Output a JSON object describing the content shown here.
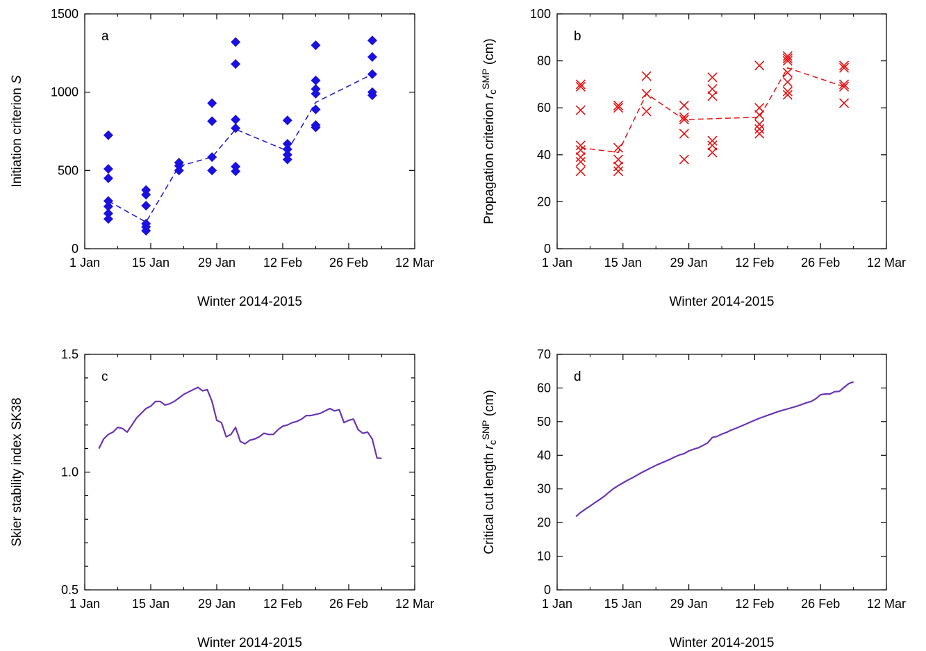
{
  "chart_data": [
    {
      "panel": "a",
      "type": "scatter",
      "ylabel": "Initiation criterion S",
      "ylabel_parts": [
        {
          "t": "Initiation criterion "
        },
        {
          "t": "S",
          "i": true
        }
      ],
      "xlabel": "Winter 2014-2015",
      "x_ticks": [
        "1 Jan",
        "15 Jan",
        "29 Jan",
        "12 Feb",
        "26 Feb",
        "12 Mar"
      ],
      "ylim": [
        0,
        1500
      ],
      "y_ticks": [
        0,
        500,
        1000,
        1500
      ],
      "y_ticks_labeled": [
        0,
        500,
        1000,
        1500
      ],
      "y_tick_fmt": "int",
      "color": "#1a10e0",
      "points": [
        {
          "x": "2015-01-06",
          "y": 725
        },
        {
          "x": "2015-01-06",
          "y": 510
        },
        {
          "x": "2015-01-06",
          "y": 450
        },
        {
          "x": "2015-01-06",
          "y": 305
        },
        {
          "x": "2015-01-06",
          "y": 270
        },
        {
          "x": "2015-01-06",
          "y": 225
        },
        {
          "x": "2015-01-06",
          "y": 190
        },
        {
          "x": "2015-01-14",
          "y": 375
        },
        {
          "x": "2015-01-14",
          "y": 345
        },
        {
          "x": "2015-01-14",
          "y": 275
        },
        {
          "x": "2015-01-14",
          "y": 160
        },
        {
          "x": "2015-01-14",
          "y": 140
        },
        {
          "x": "2015-01-14",
          "y": 115
        },
        {
          "x": "2015-01-21",
          "y": 550
        },
        {
          "x": "2015-01-21",
          "y": 530
        },
        {
          "x": "2015-01-21",
          "y": 500
        },
        {
          "x": "2015-01-28",
          "y": 930
        },
        {
          "x": "2015-01-28",
          "y": 815
        },
        {
          "x": "2015-01-28",
          "y": 585
        },
        {
          "x": "2015-01-28",
          "y": 500
        },
        {
          "x": "2015-02-02",
          "y": 1320
        },
        {
          "x": "2015-02-02",
          "y": 1180
        },
        {
          "x": "2015-02-02",
          "y": 825
        },
        {
          "x": "2015-02-02",
          "y": 770
        },
        {
          "x": "2015-02-02",
          "y": 525
        },
        {
          "x": "2015-02-02",
          "y": 495
        },
        {
          "x": "2015-02-13",
          "y": 820
        },
        {
          "x": "2015-02-13",
          "y": 670
        },
        {
          "x": "2015-02-13",
          "y": 635
        },
        {
          "x": "2015-02-13",
          "y": 600
        },
        {
          "x": "2015-02-13",
          "y": 570
        },
        {
          "x": "2015-02-19",
          "y": 1300
        },
        {
          "x": "2015-02-19",
          "y": 1075
        },
        {
          "x": "2015-02-19",
          "y": 1020
        },
        {
          "x": "2015-02-19",
          "y": 990
        },
        {
          "x": "2015-02-19",
          "y": 890
        },
        {
          "x": "2015-02-19",
          "y": 790
        },
        {
          "x": "2015-02-19",
          "y": 775
        },
        {
          "x": "2015-03-03",
          "y": 1330
        },
        {
          "x": "2015-03-03",
          "y": 1225
        },
        {
          "x": "2015-03-03",
          "y": 1115
        },
        {
          "x": "2015-03-03",
          "y": 1000
        },
        {
          "x": "2015-03-03",
          "y": 980
        }
      ],
      "mean_line": [
        {
          "x": "2015-01-06",
          "y": 305
        },
        {
          "x": "2015-01-14",
          "y": 170
        },
        {
          "x": "2015-01-21",
          "y": 527
        },
        {
          "x": "2015-01-28",
          "y": 585
        },
        {
          "x": "2015-02-02",
          "y": 763
        },
        {
          "x": "2015-02-13",
          "y": 625
        },
        {
          "x": "2015-02-19",
          "y": 935
        },
        {
          "x": "2015-03-03",
          "y": 1115
        }
      ]
    },
    {
      "panel": "b",
      "type": "scatter",
      "ylabel": "Propagation criterion rcSMP (cm)",
      "ylabel_parts": [
        {
          "t": "Propagation criterion "
        },
        {
          "t": "r",
          "i": true
        },
        {
          "t": "c",
          "sub": true
        },
        {
          "t": "SMP",
          "sup": true
        },
        {
          "t": " (cm)"
        }
      ],
      "xlabel": "Winter 2014-2015",
      "x_ticks": [
        "1 Jan",
        "15 Jan",
        "29 Jan",
        "12 Feb",
        "26 Feb",
        "12 Mar"
      ],
      "ylim": [
        0,
        100
      ],
      "y_ticks": [
        0,
        20,
        40,
        60,
        80,
        100
      ],
      "y_ticks_labeled": [
        0,
        20,
        40,
        60,
        80,
        100
      ],
      "y_tick_fmt": "int",
      "color": "#e8100f",
      "points": [
        {
          "x": "2015-01-06",
          "y": 70
        },
        {
          "x": "2015-01-06",
          "y": 69
        },
        {
          "x": "2015-01-06",
          "y": 59
        },
        {
          "x": "2015-01-06",
          "y": 44
        },
        {
          "x": "2015-01-06",
          "y": 42
        },
        {
          "x": "2015-01-06",
          "y": 39
        },
        {
          "x": "2015-01-06",
          "y": 37
        },
        {
          "x": "2015-01-06",
          "y": 33
        },
        {
          "x": "2015-01-14",
          "y": 61
        },
        {
          "x": "2015-01-14",
          "y": 60
        },
        {
          "x": "2015-01-14",
          "y": 43
        },
        {
          "x": "2015-01-14",
          "y": 38
        },
        {
          "x": "2015-01-14",
          "y": 35
        },
        {
          "x": "2015-01-14",
          "y": 33
        },
        {
          "x": "2015-01-20",
          "y": 73.5
        },
        {
          "x": "2015-01-20",
          "y": 66
        },
        {
          "x": "2015-01-20",
          "y": 58.5
        },
        {
          "x": "2015-01-28",
          "y": 61
        },
        {
          "x": "2015-01-28",
          "y": 56
        },
        {
          "x": "2015-01-28",
          "y": 55
        },
        {
          "x": "2015-01-28",
          "y": 49
        },
        {
          "x": "2015-01-28",
          "y": 38
        },
        {
          "x": "2015-02-03",
          "y": 73
        },
        {
          "x": "2015-02-03",
          "y": 68
        },
        {
          "x": "2015-02-03",
          "y": 65
        },
        {
          "x": "2015-02-03",
          "y": 46
        },
        {
          "x": "2015-02-03",
          "y": 44
        },
        {
          "x": "2015-02-03",
          "y": 41
        },
        {
          "x": "2015-02-13",
          "y": 78
        },
        {
          "x": "2015-02-13",
          "y": 60
        },
        {
          "x": "2015-02-13",
          "y": 57
        },
        {
          "x": "2015-02-13",
          "y": 53
        },
        {
          "x": "2015-02-13",
          "y": 51
        },
        {
          "x": "2015-02-13",
          "y": 49
        },
        {
          "x": "2015-02-19",
          "y": 82
        },
        {
          "x": "2015-02-19",
          "y": 81
        },
        {
          "x": "2015-02-19",
          "y": 80
        },
        {
          "x": "2015-02-19",
          "y": 75
        },
        {
          "x": "2015-02-19",
          "y": 71
        },
        {
          "x": "2015-02-19",
          "y": 67
        },
        {
          "x": "2015-02-19",
          "y": 65.5
        },
        {
          "x": "2015-03-03",
          "y": 78
        },
        {
          "x": "2015-03-03",
          "y": 77
        },
        {
          "x": "2015-03-03",
          "y": 70
        },
        {
          "x": "2015-03-03",
          "y": 69
        },
        {
          "x": "2015-03-03",
          "y": 62
        }
      ],
      "mean_line": [
        {
          "x": "2015-01-06",
          "y": 43
        },
        {
          "x": "2015-01-14",
          "y": 41
        },
        {
          "x": "2015-01-20",
          "y": 66
        },
        {
          "x": "2015-01-28",
          "y": 55
        },
        {
          "x": "2015-02-13",
          "y": 56
        },
        {
          "x": "2015-02-19",
          "y": 77
        },
        {
          "x": "2015-03-03",
          "y": 69
        }
      ]
    },
    {
      "panel": "c",
      "type": "line",
      "ylabel": "Skier stability index SK38",
      "ylabel_parts": [
        {
          "t": "Skier stability index SK38"
        }
      ],
      "xlabel": "Winter 2014-2015",
      "x_ticks": [
        "1 Jan",
        "15 Jan",
        "29 Jan",
        "12 Feb",
        "26 Feb",
        "12 Mar"
      ],
      "ylim": [
        0.5,
        1.5
      ],
      "y_ticks": [
        0.5,
        0.6,
        0.7,
        0.8,
        0.9,
        1.0,
        1.1,
        1.2,
        1.3,
        1.4,
        1.5
      ],
      "y_ticks_labeled": [
        0.5,
        1.0,
        1.5
      ],
      "y_tick_fmt": "1dp",
      "color": "#6a35b5",
      "series": [
        {
          "x": "2015-01-04",
          "y": 1.1
        },
        {
          "x": "2015-01-05",
          "y": 1.14
        },
        {
          "x": "2015-01-06",
          "y": 1.16
        },
        {
          "x": "2015-01-07",
          "y": 1.17
        },
        {
          "x": "2015-01-08",
          "y": 1.19
        },
        {
          "x": "2015-01-09",
          "y": 1.185
        },
        {
          "x": "2015-01-10",
          "y": 1.17
        },
        {
          "x": "2015-01-11",
          "y": 1.2
        },
        {
          "x": "2015-01-12",
          "y": 1.23
        },
        {
          "x": "2015-01-13",
          "y": 1.25
        },
        {
          "x": "2015-01-14",
          "y": 1.27
        },
        {
          "x": "2015-01-15",
          "y": 1.28
        },
        {
          "x": "2015-01-16",
          "y": 1.3
        },
        {
          "x": "2015-01-17",
          "y": 1.3
        },
        {
          "x": "2015-01-18",
          "y": 1.285
        },
        {
          "x": "2015-01-19",
          "y": 1.29
        },
        {
          "x": "2015-01-20",
          "y": 1.3
        },
        {
          "x": "2015-01-21",
          "y": 1.315
        },
        {
          "x": "2015-01-22",
          "y": 1.33
        },
        {
          "x": "2015-01-23",
          "y": 1.34
        },
        {
          "x": "2015-01-24",
          "y": 1.35
        },
        {
          "x": "2015-01-25",
          "y": 1.36
        },
        {
          "x": "2015-01-26",
          "y": 1.345
        },
        {
          "x": "2015-01-27",
          "y": 1.35
        },
        {
          "x": "2015-01-28",
          "y": 1.3
        },
        {
          "x": "2015-01-29",
          "y": 1.22
        },
        {
          "x": "2015-01-30",
          "y": 1.21
        },
        {
          "x": "2015-01-31",
          "y": 1.15
        },
        {
          "x": "2015-02-01",
          "y": 1.16
        },
        {
          "x": "2015-02-02",
          "y": 1.19
        },
        {
          "x": "2015-02-03",
          "y": 1.13
        },
        {
          "x": "2015-02-04",
          "y": 1.12
        },
        {
          "x": "2015-02-05",
          "y": 1.135
        },
        {
          "x": "2015-02-06",
          "y": 1.14
        },
        {
          "x": "2015-02-07",
          "y": 1.15
        },
        {
          "x": "2015-02-08",
          "y": 1.165
        },
        {
          "x": "2015-02-09",
          "y": 1.16
        },
        {
          "x": "2015-02-10",
          "y": 1.16
        },
        {
          "x": "2015-02-11",
          "y": 1.18
        },
        {
          "x": "2015-02-12",
          "y": 1.195
        },
        {
          "x": "2015-02-13",
          "y": 1.2
        },
        {
          "x": "2015-02-14",
          "y": 1.21
        },
        {
          "x": "2015-02-15",
          "y": 1.215
        },
        {
          "x": "2015-02-16",
          "y": 1.225
        },
        {
          "x": "2015-02-17",
          "y": 1.24
        },
        {
          "x": "2015-02-18",
          "y": 1.24
        },
        {
          "x": "2015-02-19",
          "y": 1.245
        },
        {
          "x": "2015-02-20",
          "y": 1.25
        },
        {
          "x": "2015-02-21",
          "y": 1.26
        },
        {
          "x": "2015-02-22",
          "y": 1.27
        },
        {
          "x": "2015-02-23",
          "y": 1.26
        },
        {
          "x": "2015-02-24",
          "y": 1.265
        },
        {
          "x": "2015-02-25",
          "y": 1.21
        },
        {
          "x": "2015-02-26",
          "y": 1.22
        },
        {
          "x": "2015-02-27",
          "y": 1.225
        },
        {
          "x": "2015-02-28",
          "y": 1.18
        },
        {
          "x": "2015-03-01",
          "y": 1.165
        },
        {
          "x": "2015-03-02",
          "y": 1.17
        },
        {
          "x": "2015-03-03",
          "y": 1.14
        },
        {
          "x": "2015-03-04",
          "y": 1.06
        },
        {
          "x": "2015-03-05",
          "y": 1.058
        }
      ]
    },
    {
      "panel": "d",
      "type": "line",
      "ylabel": "Critical cut length rcSNP (cm)",
      "ylabel_parts": [
        {
          "t": "Critical cut length "
        },
        {
          "t": "r",
          "i": true
        },
        {
          "t": "c",
          "sub": true
        },
        {
          "t": "SNP",
          "sup": true
        },
        {
          "t": " (cm)"
        }
      ],
      "xlabel": "Winter 2014-2015",
      "x_ticks": [
        "1 Jan",
        "15 Jan",
        "29 Jan",
        "12 Feb",
        "26 Feb",
        "12 Mar"
      ],
      "ylim": [
        0,
        70
      ],
      "y_ticks": [
        0,
        10,
        20,
        30,
        40,
        50,
        60,
        70
      ],
      "y_ticks_labeled": [
        0,
        10,
        20,
        30,
        40,
        50,
        60,
        70
      ],
      "y_tick_fmt": "int",
      "color": "#6a35b5",
      "series": [
        {
          "x": "2015-01-05",
          "y": 21.8
        },
        {
          "x": "2015-01-06",
          "y": 23.0
        },
        {
          "x": "2015-01-07",
          "y": 24.0
        },
        {
          "x": "2015-01-08",
          "y": 24.9
        },
        {
          "x": "2015-01-09",
          "y": 25.9
        },
        {
          "x": "2015-01-10",
          "y": 26.8
        },
        {
          "x": "2015-01-11",
          "y": 27.8
        },
        {
          "x": "2015-01-12",
          "y": 29.0
        },
        {
          "x": "2015-01-13",
          "y": 30.1
        },
        {
          "x": "2015-01-14",
          "y": 31.0
        },
        {
          "x": "2015-01-15",
          "y": 31.8
        },
        {
          "x": "2015-01-16",
          "y": 32.6
        },
        {
          "x": "2015-01-17",
          "y": 33.3
        },
        {
          "x": "2015-01-18",
          "y": 34.1
        },
        {
          "x": "2015-01-19",
          "y": 34.9
        },
        {
          "x": "2015-01-20",
          "y": 35.6
        },
        {
          "x": "2015-01-21",
          "y": 36.3
        },
        {
          "x": "2015-01-22",
          "y": 37.0
        },
        {
          "x": "2015-01-23",
          "y": 37.6
        },
        {
          "x": "2015-01-24",
          "y": 38.2
        },
        {
          "x": "2015-01-25",
          "y": 38.8
        },
        {
          "x": "2015-01-26",
          "y": 39.5
        },
        {
          "x": "2015-01-27",
          "y": 40.1
        },
        {
          "x": "2015-01-28",
          "y": 40.5
        },
        {
          "x": "2015-01-29",
          "y": 41.3
        },
        {
          "x": "2015-01-30",
          "y": 41.8
        },
        {
          "x": "2015-01-31",
          "y": 42.2
        },
        {
          "x": "2015-02-01",
          "y": 42.9
        },
        {
          "x": "2015-02-02",
          "y": 43.7
        },
        {
          "x": "2015-02-03",
          "y": 45.3
        },
        {
          "x": "2015-02-04",
          "y": 45.6
        },
        {
          "x": "2015-02-05",
          "y": 46.3
        },
        {
          "x": "2015-02-06",
          "y": 46.8
        },
        {
          "x": "2015-02-07",
          "y": 47.5
        },
        {
          "x": "2015-02-08",
          "y": 48.0
        },
        {
          "x": "2015-02-09",
          "y": 48.6
        },
        {
          "x": "2015-02-10",
          "y": 49.2
        },
        {
          "x": "2015-02-11",
          "y": 49.8
        },
        {
          "x": "2015-02-12",
          "y": 50.4
        },
        {
          "x": "2015-02-13",
          "y": 51.0
        },
        {
          "x": "2015-02-14",
          "y": 51.5
        },
        {
          "x": "2015-02-15",
          "y": 52.0
        },
        {
          "x": "2015-02-16",
          "y": 52.5
        },
        {
          "x": "2015-02-17",
          "y": 53.0
        },
        {
          "x": "2015-02-18",
          "y": 53.4
        },
        {
          "x": "2015-02-19",
          "y": 53.8
        },
        {
          "x": "2015-02-20",
          "y": 54.2
        },
        {
          "x": "2015-02-21",
          "y": 54.6
        },
        {
          "x": "2015-02-22",
          "y": 55.1
        },
        {
          "x": "2015-02-23",
          "y": 55.6
        },
        {
          "x": "2015-02-24",
          "y": 56.0
        },
        {
          "x": "2015-02-25",
          "y": 56.8
        },
        {
          "x": "2015-02-26",
          "y": 58.0
        },
        {
          "x": "2015-02-27",
          "y": 58.2
        },
        {
          "x": "2015-02-28",
          "y": 58.2
        },
        {
          "x": "2015-03-01",
          "y": 58.9
        },
        {
          "x": "2015-03-02",
          "y": 59.0
        },
        {
          "x": "2015-03-03",
          "y": 60.2
        },
        {
          "x": "2015-03-04",
          "y": 61.3
        },
        {
          "x": "2015-03-05",
          "y": 61.8
        }
      ]
    }
  ]
}
